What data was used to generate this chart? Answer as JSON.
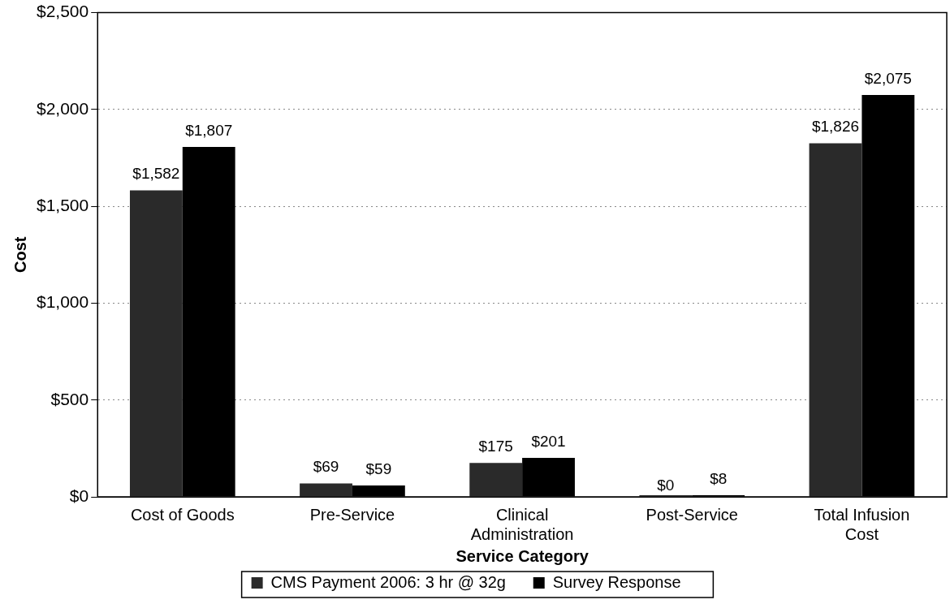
{
  "chart_data": {
    "type": "bar",
    "xlabel": "Service Category",
    "ylabel": "Cost",
    "categories": [
      "Cost of Goods",
      "Pre-Service",
      "Clinical Administration",
      "Post-Service",
      "Total Infusion Cost"
    ],
    "series": [
      {
        "name": "CMS Payment 2006: 3 hr @ 32g",
        "color": "#2a2a2a",
        "values": [
          1582,
          69,
          175,
          0,
          1826
        ],
        "value_labels": [
          "$1,582",
          "$69",
          "$175",
          "$0",
          "$1,826"
        ]
      },
      {
        "name": "Survey Response",
        "color": "#000000",
        "values": [
          1807,
          59,
          201,
          8,
          2075
        ],
        "value_labels": [
          "$1,807",
          "$59",
          "$201",
          "$8",
          "$2,075"
        ]
      }
    ],
    "ylim": [
      0,
      2500
    ],
    "yticks": [
      {
        "value": 0,
        "label": "$0"
      },
      {
        "value": 500,
        "label": "$500"
      },
      {
        "value": 1000,
        "label": "$1,000"
      },
      {
        "value": 1500,
        "label": "$1,500"
      },
      {
        "value": 2000,
        "label": "$2,000"
      },
      {
        "value": 2500,
        "label": "$2,500"
      }
    ],
    "grid": "y",
    "legend": "bottom"
  }
}
